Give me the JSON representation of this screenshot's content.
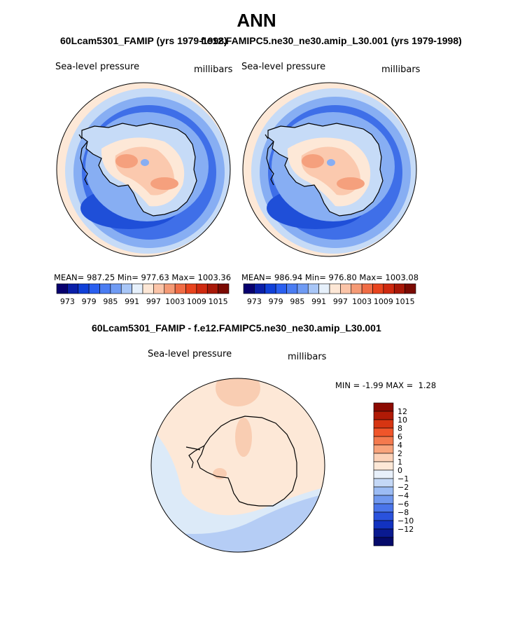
{
  "page_title": "ANN",
  "panels": [
    {
      "run_title": "60Lcam5301_FAMIP (yrs 1979-1998)",
      "variable": "Sea-level pressure",
      "units": "millibars",
      "stats": {
        "mean": "987.25",
        "min": "977.63",
        "max": "1003.36",
        "text": "MEAN= 987.25   Min= 977.63   Max= 1003.36"
      }
    },
    {
      "run_title": "f.e12.FAMIPC5.ne30_ne30.amip_L30.001 (yrs 1979-1998)",
      "variable": "Sea-level pressure",
      "units": "millibars",
      "stats": {
        "mean": "986.94",
        "min": "976.80",
        "max": "1003.08",
        "text": "MEAN= 986.94   Min= 976.80   Max= 1003.08"
      }
    }
  ],
  "abs_colorbar": {
    "colors": [
      "#08006e",
      "#0a1fa8",
      "#1040d8",
      "#2a5ff0",
      "#4a7cf2",
      "#6f9bf4",
      "#a8c6f7",
      "#e6f0fb",
      "#fde7d6",
      "#fbc4a8",
      "#f59a75",
      "#f06c45",
      "#e8441e",
      "#cf2a10",
      "#a81808",
      "#7a0a02"
    ],
    "tick_labels": [
      "973",
      "979",
      "985",
      "991",
      "997",
      "1003",
      "1009",
      "1015"
    ]
  },
  "diff_panel": {
    "title": "60Lcam5301_FAMIP - f.e12.FAMIPC5.ne30_ne30.amip_L30.001",
    "variable": "Sea-level pressure",
    "units": "millibars",
    "min_label": "MIN =",
    "min": "-1.99",
    "max_label": "MAX =",
    "max": "1.28",
    "colorbar": {
      "colors_top_to_bottom": [
        "#8c0a02",
        "#b01a06",
        "#d63512",
        "#f0552a",
        "#f47a4e",
        "#f8a47c",
        "#fcd2b8",
        "#fde8d7",
        "#e8f0fa",
        "#c4d8f6",
        "#9cbcf4",
        "#7199ef",
        "#4a75ea",
        "#2a52dd",
        "#1232c0",
        "#0a1a90",
        "#050a6a"
      ],
      "tick_labels": [
        "12",
        "10",
        "8",
        "6",
        "4",
        "2",
        "1",
        "0",
        "−1",
        "−2",
        "−4",
        "−6",
        "−8",
        "−10",
        "−12"
      ]
    }
  },
  "map_colors": {
    "outer_pale": "#fde8d7",
    "band_light": "#c6dbf7",
    "band_mid": "#87aef3",
    "band_deep": "#3f6fe8",
    "band_darkest": "#1f4fd8",
    "high_light": "#fbc9ae",
    "high_mid": "#f5a07d",
    "diff_pos": "#fde8d7",
    "diff_pos_strong": "#f9cdb2",
    "diff_neg": "#dceaf8",
    "diff_neg_strong": "#b5cdf5"
  }
}
